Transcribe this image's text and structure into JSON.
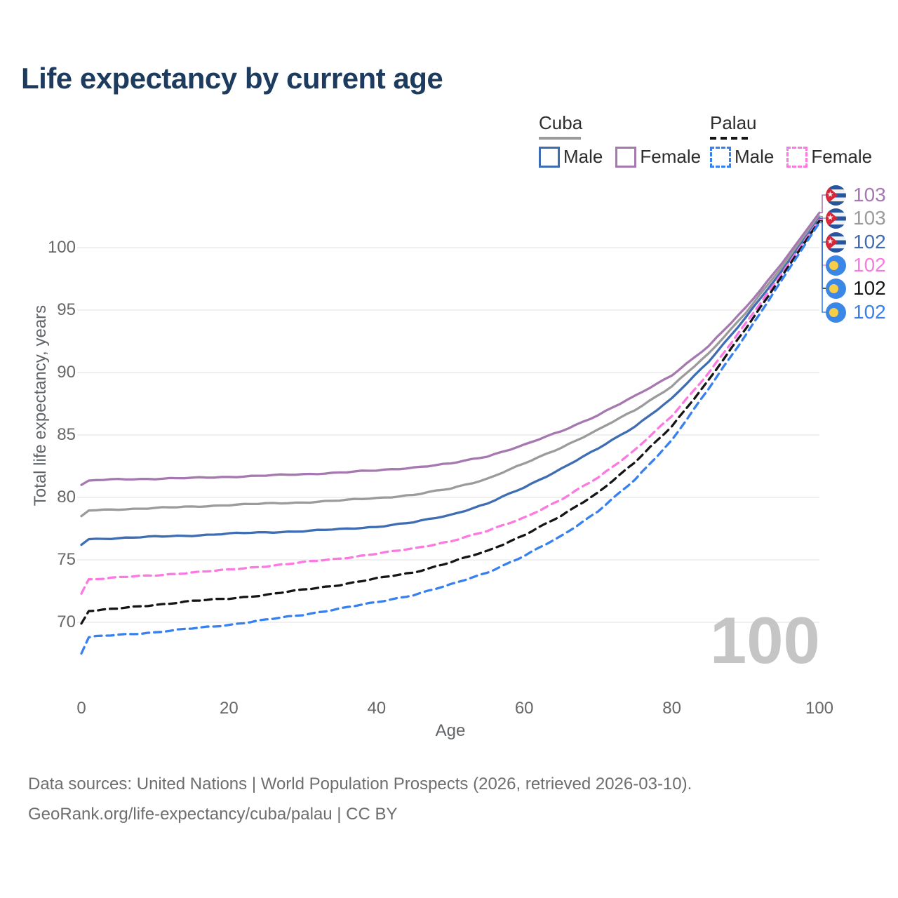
{
  "title": "Life expectancy by current age",
  "legend": {
    "groups": [
      {
        "country": "Cuba",
        "line_style": "solid",
        "underline_color": "#9b9b9b",
        "items": [
          {
            "label": "Male",
            "color": "#3e6db4"
          },
          {
            "label": "Female",
            "color": "#a678b0"
          }
        ]
      },
      {
        "country": "Palau",
        "line_style": "dashed",
        "underline_color": "#151515",
        "items": [
          {
            "label": "Male",
            "color": "#3680ef"
          },
          {
            "label": "Female",
            "color": "#fb79e1"
          }
        ]
      }
    ]
  },
  "chart_data": {
    "type": "line",
    "title": "Life expectancy by current age",
    "xlabel": "Age",
    "ylabel": "Total life expectancy, years",
    "x_ticks": [
      0,
      20,
      40,
      60,
      80,
      100
    ],
    "y_ticks": [
      70,
      75,
      80,
      85,
      90,
      95,
      100
    ],
    "xlim": [
      0,
      100
    ],
    "ylim": [
      67,
      103.5
    ],
    "grid": "horizontal-only",
    "legend_position": "top-right",
    "ages": [
      0,
      1,
      5,
      10,
      15,
      20,
      25,
      30,
      35,
      40,
      45,
      50,
      55,
      60,
      65,
      70,
      75,
      80,
      85,
      90,
      95,
      100
    ],
    "series": [
      {
        "name": "Cuba Female",
        "country": "Cuba",
        "sex": "Female",
        "color": "#a678b0",
        "dash": "solid",
        "flag": "cuba",
        "end_label": "103",
        "values": [
          81.0,
          81.35,
          81.45,
          81.5,
          81.55,
          81.65,
          81.75,
          81.85,
          82.0,
          82.15,
          82.4,
          82.7,
          83.3,
          84.2,
          85.3,
          86.6,
          88.1,
          89.8,
          92.1,
          95.2,
          98.8,
          102.8
        ]
      },
      {
        "name": "Cuba Both sexes",
        "country": "Cuba",
        "sex": "Both",
        "color": "#9b9b9b",
        "dash": "solid",
        "flag": "cuba",
        "end_label": "103",
        "values": [
          78.5,
          78.95,
          79.05,
          79.15,
          79.25,
          79.4,
          79.5,
          79.6,
          79.75,
          79.95,
          80.2,
          80.7,
          81.5,
          82.7,
          84.0,
          85.4,
          87.0,
          88.9,
          91.5,
          94.8,
          98.5,
          102.5
        ]
      },
      {
        "name": "Cuba Male",
        "country": "Cuba",
        "sex": "Male",
        "color": "#3e6db4",
        "dash": "solid",
        "flag": "cuba",
        "end_label": "102",
        "values": [
          76.2,
          76.65,
          76.75,
          76.85,
          76.95,
          77.1,
          77.2,
          77.3,
          77.45,
          77.65,
          78.0,
          78.6,
          79.5,
          80.8,
          82.3,
          83.9,
          85.7,
          87.9,
          90.9,
          94.4,
          98.2,
          102.35
        ]
      },
      {
        "name": "Palau Female",
        "country": "Palau",
        "sex": "Female",
        "color": "#fb79e1",
        "dash": "dashed",
        "flag": "palau",
        "end_label": "102",
        "values": [
          72.3,
          73.45,
          73.6,
          73.75,
          74.0,
          74.2,
          74.5,
          74.8,
          75.1,
          75.5,
          75.9,
          76.5,
          77.3,
          78.4,
          79.8,
          81.6,
          83.8,
          86.5,
          90.0,
          93.9,
          98.0,
          102.25
        ]
      },
      {
        "name": "Palau Both sexes",
        "country": "Palau",
        "sex": "Both",
        "color": "#151515",
        "dash": "dashed",
        "flag": "palau",
        "end_label": "102",
        "values": [
          69.9,
          70.9,
          71.1,
          71.4,
          71.7,
          71.9,
          72.2,
          72.6,
          73.0,
          73.5,
          74.0,
          74.8,
          75.7,
          77.0,
          78.5,
          80.4,
          82.8,
          85.7,
          89.4,
          93.5,
          97.8,
          102.15
        ]
      },
      {
        "name": "Palau Male",
        "country": "Palau",
        "sex": "Male",
        "color": "#3680ef",
        "dash": "dashed",
        "flag": "palau",
        "end_label": "102",
        "values": [
          67.5,
          68.8,
          69.0,
          69.2,
          69.5,
          69.8,
          70.2,
          70.6,
          71.1,
          71.6,
          72.2,
          73.0,
          74.0,
          75.3,
          76.9,
          78.9,
          81.4,
          84.6,
          88.7,
          93.0,
          97.5,
          102.0
        ]
      }
    ],
    "watermark": "100"
  },
  "footer": {
    "line1": "Data sources: United Nations | World Population Prospects (2026, retrieved 2026-03-10).",
    "line2": "GeoRank.org/life-expectancy/cuba/palau | CC BY"
  }
}
